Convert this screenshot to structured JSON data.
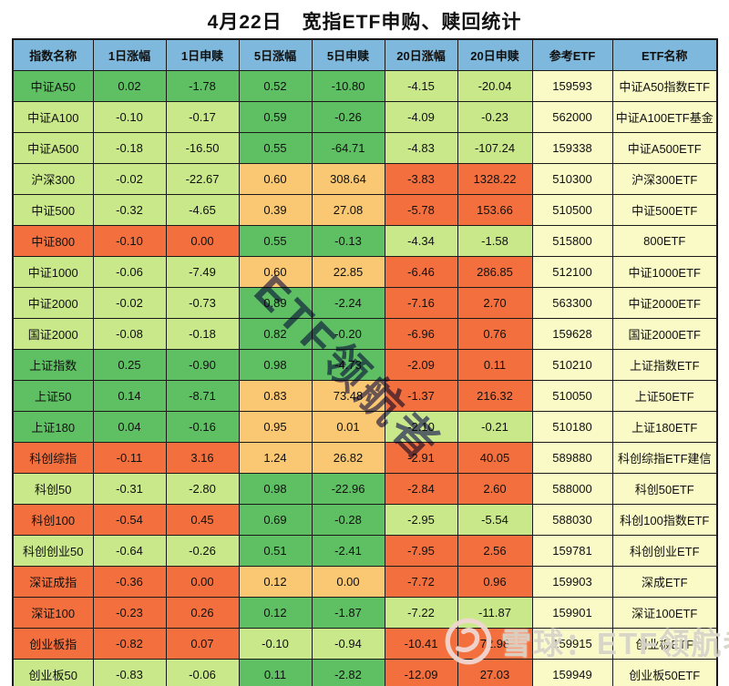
{
  "title": "4月22日　宽指ETF申购、赎回统计",
  "watermarks": {
    "center": "ETF领航者",
    "corner_label": "雪球：ETF领航者",
    "corner_icon": "xueqiu-snowball-logo"
  },
  "colors": {
    "header_bg": "#7EB8DC",
    "green": "#5FC063",
    "light_green": "#C9E88A",
    "orange": "#FAC772",
    "red": "#F3703E",
    "pale_yellow": "#FAFAC6",
    "border": "#1A1A1A",
    "watermark_center": "#4A4AA8",
    "watermark_corner": "#D8D4C8"
  },
  "chart_data": {
    "type": "table",
    "title": "4月22日 宽指ETF申购、赎回统计",
    "columns": [
      "指数名称",
      "1日涨幅",
      "1日申赎",
      "5日涨幅",
      "5日申赎",
      "20日涨幅",
      "20日申赎",
      "参考ETF",
      "ETF名称"
    ],
    "rows": [
      [
        "中证A50",
        "0.02",
        "-1.78",
        "0.52",
        "-10.80",
        "-4.15",
        "-20.04",
        "159593",
        "中证A50指数ETF"
      ],
      [
        "中证A100",
        "-0.10",
        "-0.17",
        "0.59",
        "-0.26",
        "-4.09",
        "-0.23",
        "562000",
        "中证A100ETF基金"
      ],
      [
        "中证A500",
        "-0.18",
        "-16.50",
        "0.55",
        "-64.71",
        "-4.83",
        "-107.24",
        "159338",
        "中证A500ETF"
      ],
      [
        "沪深300",
        "-0.02",
        "-22.67",
        "0.60",
        "308.64",
        "-3.83",
        "1328.22",
        "510300",
        "沪深300ETF"
      ],
      [
        "中证500",
        "-0.32",
        "-4.65",
        "0.39",
        "27.08",
        "-5.78",
        "153.66",
        "510500",
        "中证500ETF"
      ],
      [
        "中证800",
        "-0.10",
        "0.00",
        "0.55",
        "-0.13",
        "-4.34",
        "-1.58",
        "515800",
        "800ETF"
      ],
      [
        "中证1000",
        "-0.06",
        "-7.49",
        "0.60",
        "22.85",
        "-6.46",
        "286.85",
        "512100",
        "中证1000ETF"
      ],
      [
        "中证2000",
        "-0.02",
        "-0.73",
        "0.89",
        "-2.24",
        "-7.16",
        "2.70",
        "563300",
        "中证2000ETF"
      ],
      [
        "国证2000",
        "-0.08",
        "-0.18",
        "0.82",
        "-0.20",
        "-6.96",
        "0.76",
        "159628",
        "国证2000ETF"
      ],
      [
        "上证指数",
        "0.25",
        "-0.90",
        "0.98",
        "-4.73",
        "-2.09",
        "0.11",
        "510210",
        "上证指数ETF"
      ],
      [
        "上证50",
        "0.14",
        "-8.71",
        "0.83",
        "73.48",
        "-1.37",
        "216.32",
        "510050",
        "上证50ETF"
      ],
      [
        "上证180",
        "0.04",
        "-0.16",
        "0.95",
        "0.01",
        "-2.10",
        "-0.21",
        "510180",
        "上证180ETF"
      ],
      [
        "科创综指",
        "-0.11",
        "3.16",
        "1.24",
        "26.82",
        "-2.91",
        "40.05",
        "589880",
        "科创综指ETF建信"
      ],
      [
        "科创50",
        "-0.31",
        "-2.80",
        "0.98",
        "-22.96",
        "-2.84",
        "2.60",
        "588000",
        "科创50ETF"
      ],
      [
        "科创100",
        "-0.54",
        "0.45",
        "0.69",
        "-0.28",
        "-2.95",
        "-5.54",
        "588030",
        "科创100指数ETF"
      ],
      [
        "科创创业50",
        "-0.64",
        "-0.26",
        "0.51",
        "-2.41",
        "-7.95",
        "2.56",
        "159781",
        "科创创业ETF"
      ],
      [
        "深证成指",
        "-0.36",
        "0.00",
        "0.12",
        "0.00",
        "-7.72",
        "0.96",
        "159903",
        "深成ETF"
      ],
      [
        "深证100",
        "-0.23",
        "0.26",
        "0.12",
        "-1.87",
        "-7.22",
        "-11.87",
        "159901",
        "深证100ETF"
      ],
      [
        "创业板指",
        "-0.82",
        "0.07",
        "-0.10",
        "-0.94",
        "-10.41",
        "72.98",
        "159915",
        "创业板ETF"
      ],
      [
        "创业板50",
        "-0.83",
        "-0.06",
        "0.11",
        "-2.82",
        "-12.09",
        "27.03",
        "159949",
        "创业板50ETF"
      ]
    ],
    "cell_colors": [
      [
        "g",
        "g",
        "g",
        "g",
        "g",
        "lg",
        "lg",
        "y",
        "y"
      ],
      [
        "lg",
        "lg",
        "lg",
        "g",
        "g",
        "lg",
        "lg",
        "y",
        "y"
      ],
      [
        "lg",
        "lg",
        "lg",
        "g",
        "g",
        "lg",
        "lg",
        "y",
        "y"
      ],
      [
        "lg",
        "lg",
        "lg",
        "o",
        "o",
        "r",
        "r",
        "y",
        "y"
      ],
      [
        "lg",
        "lg",
        "lg",
        "o",
        "o",
        "r",
        "r",
        "y",
        "y"
      ],
      [
        "r",
        "r",
        "r",
        "g",
        "g",
        "lg",
        "lg",
        "y",
        "y"
      ],
      [
        "lg",
        "lg",
        "lg",
        "o",
        "o",
        "r",
        "r",
        "y",
        "y"
      ],
      [
        "lg",
        "lg",
        "lg",
        "g",
        "g",
        "r",
        "r",
        "y",
        "y"
      ],
      [
        "lg",
        "lg",
        "lg",
        "g",
        "g",
        "r",
        "r",
        "y",
        "y"
      ],
      [
        "g",
        "g",
        "g",
        "g",
        "g",
        "r",
        "r",
        "y",
        "y"
      ],
      [
        "g",
        "g",
        "g",
        "o",
        "o",
        "r",
        "r",
        "y",
        "y"
      ],
      [
        "g",
        "g",
        "g",
        "o",
        "o",
        "lg",
        "lg",
        "y",
        "y"
      ],
      [
        "r",
        "r",
        "r",
        "o",
        "o",
        "r",
        "r",
        "y",
        "y"
      ],
      [
        "lg",
        "lg",
        "lg",
        "g",
        "g",
        "r",
        "r",
        "y",
        "y"
      ],
      [
        "r",
        "r",
        "r",
        "g",
        "g",
        "lg",
        "lg",
        "y",
        "y"
      ],
      [
        "lg",
        "lg",
        "lg",
        "g",
        "g",
        "r",
        "r",
        "y",
        "y"
      ],
      [
        "r",
        "r",
        "r",
        "o",
        "o",
        "r",
        "r",
        "y",
        "y"
      ],
      [
        "r",
        "r",
        "r",
        "g",
        "g",
        "lg",
        "lg",
        "y",
        "y"
      ],
      [
        "r",
        "r",
        "r",
        "lg",
        "lg",
        "r",
        "r",
        "y",
        "y"
      ],
      [
        "lg",
        "lg",
        "lg",
        "g",
        "g",
        "r",
        "r",
        "y",
        "y"
      ]
    ],
    "legend_position": "none",
    "grid": true
  }
}
